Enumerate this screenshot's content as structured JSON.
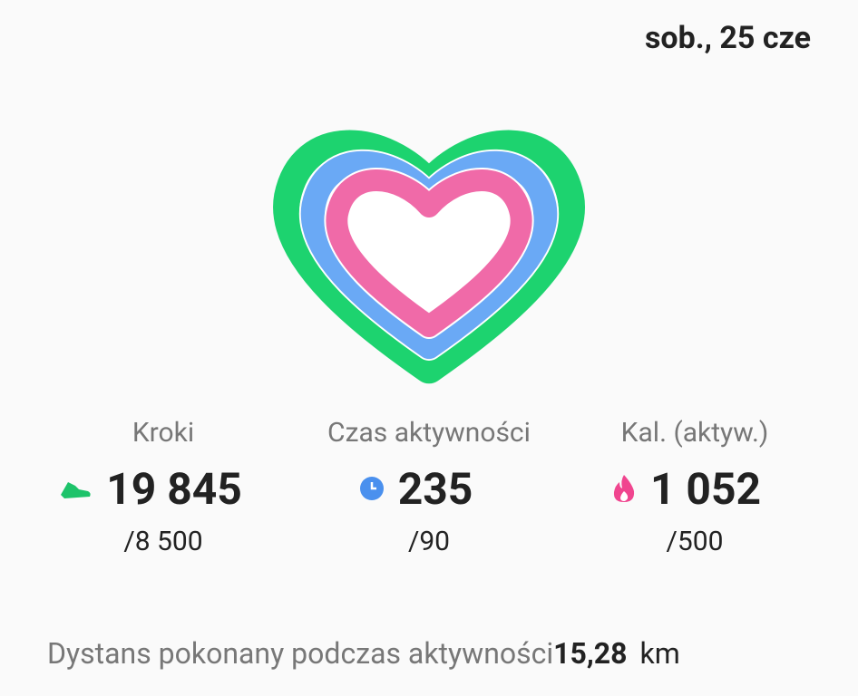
{
  "header": {
    "date": "sob., 25 cze"
  },
  "stats": [
    {
      "label": "Kroki",
      "value": "19 845",
      "goal": "/8 500"
    },
    {
      "label": "Czas aktywności",
      "value": "235",
      "goal": "/90"
    },
    {
      "label": "Kal. (aktyw.)",
      "value": "1 052",
      "goal": "/500"
    }
  ],
  "distance": {
    "label": "Dystans pokonany podczas aktywności",
    "value": "15,28",
    "unit": "km"
  }
}
